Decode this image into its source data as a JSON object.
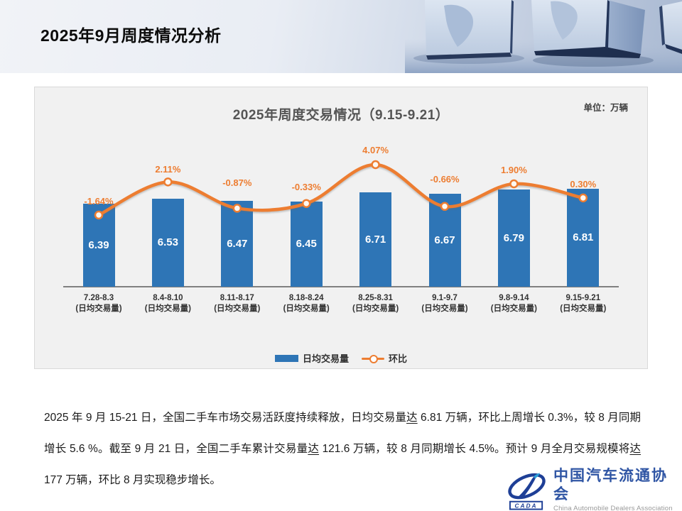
{
  "slide": {
    "title": "2025年9月周度情况分析"
  },
  "chart": {
    "title": "2025年周度交易情况（9.15-9.21）",
    "unit_label": "单位：万辆",
    "legend": [
      {
        "label": "日均交易量",
        "symbol": "bar"
      },
      {
        "label": "环比",
        "symbol": "line"
      }
    ],
    "colors": {
      "bar": "#2E75B6",
      "line": "#ED7D31",
      "bar_value_text": "#FFFFFF"
    }
  },
  "chart_data": {
    "type": "bar",
    "combo": "bar+line",
    "title": "2025年周度交易情况（9.15-9.21）",
    "unit": "万辆",
    "categories": [
      "7.28-8.3",
      "8.4-8.10",
      "8.11-8.17",
      "8.18-8.24",
      "8.25-8.31",
      "9.1-9.7",
      "9.8-9.14",
      "9.15-9.21"
    ],
    "category_sublabel": "(日均交易量)",
    "series": [
      {
        "name": "日均交易量",
        "type": "bar",
        "color": "#2E75B6",
        "values": [
          6.39,
          6.53,
          6.47,
          6.45,
          6.71,
          6.67,
          6.79,
          6.81
        ]
      },
      {
        "name": "环比",
        "type": "line",
        "color": "#ED7D31",
        "values": [
          -1.64,
          2.11,
          -0.87,
          -0.33,
          4.07,
          -0.66,
          1.9,
          0.3
        ],
        "labels": [
          "-1.64%",
          "2.11%",
          "-0.87%",
          "-0.33%",
          "4.07%",
          "-0.66%",
          "1.90%",
          "0.30%"
        ]
      }
    ],
    "legend_position": "bottom",
    "gridlines": false,
    "value_axis_visible": false
  },
  "body": {
    "runs": [
      {
        "text": "2025 年 9 月 15-21 日，全国二手车市场交易活跃度持续释放，日均交易量"
      },
      {
        "text": "达",
        "underline": true
      },
      {
        "text": " 6.81 万辆，环比上周增长 0.3%，较 8 月同期增长 5.6 %。截至 9 月 21 日，全国二手车累计交易量"
      },
      {
        "text": "达",
        "underline": true
      },
      {
        "text": " 121.6 万辆，较 8 月同期增长 4.5%。预计 9 月全月交易规模将"
      },
      {
        "text": "达",
        "underline": true
      },
      {
        "text": " 177 万辆，环比 8 月实现稳步增长。"
      }
    ]
  },
  "logo": {
    "badge": "CADA",
    "name_zh": "中国汽车流通协会",
    "name_en": "China Automobile Dealers Association"
  }
}
